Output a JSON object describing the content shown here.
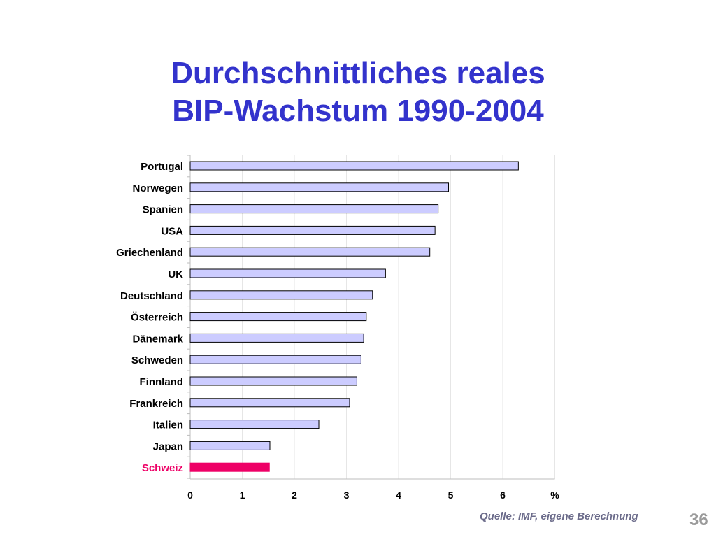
{
  "title_line1": "Durchschnittliches reales",
  "title_line2": "BIP-Wachstum 1990-2004",
  "source": "Quelle: IMF, eigene Berechnung",
  "page_number": "36",
  "chart_data": {
    "type": "bar",
    "orientation": "horizontal",
    "categories": [
      "Portugal",
      "Norwegen",
      "Spanien",
      "USA",
      "Griechenland",
      "UK",
      "Deutschland",
      "Österreich",
      "Dänemark",
      "Schweden",
      "Finnland",
      "Frankreich",
      "Italien",
      "Japan",
      "Schweiz"
    ],
    "values": [
      6.3,
      4.96,
      4.76,
      4.7,
      4.6,
      3.75,
      3.5,
      3.38,
      3.33,
      3.28,
      3.2,
      3.06,
      2.47,
      1.53,
      1.52
    ],
    "highlight": "Schweiz",
    "x_ticks": [
      "0",
      "1",
      "2",
      "3",
      "4",
      "5",
      "6"
    ],
    "x_unit": "%",
    "xlim": [
      0,
      7
    ],
    "grid": true,
    "colors": {
      "bar": "#ccccff",
      "bar_border": "#000000",
      "highlight": "#ee0066",
      "label": "#000000",
      "gridline": "#e6e6e6"
    }
  }
}
